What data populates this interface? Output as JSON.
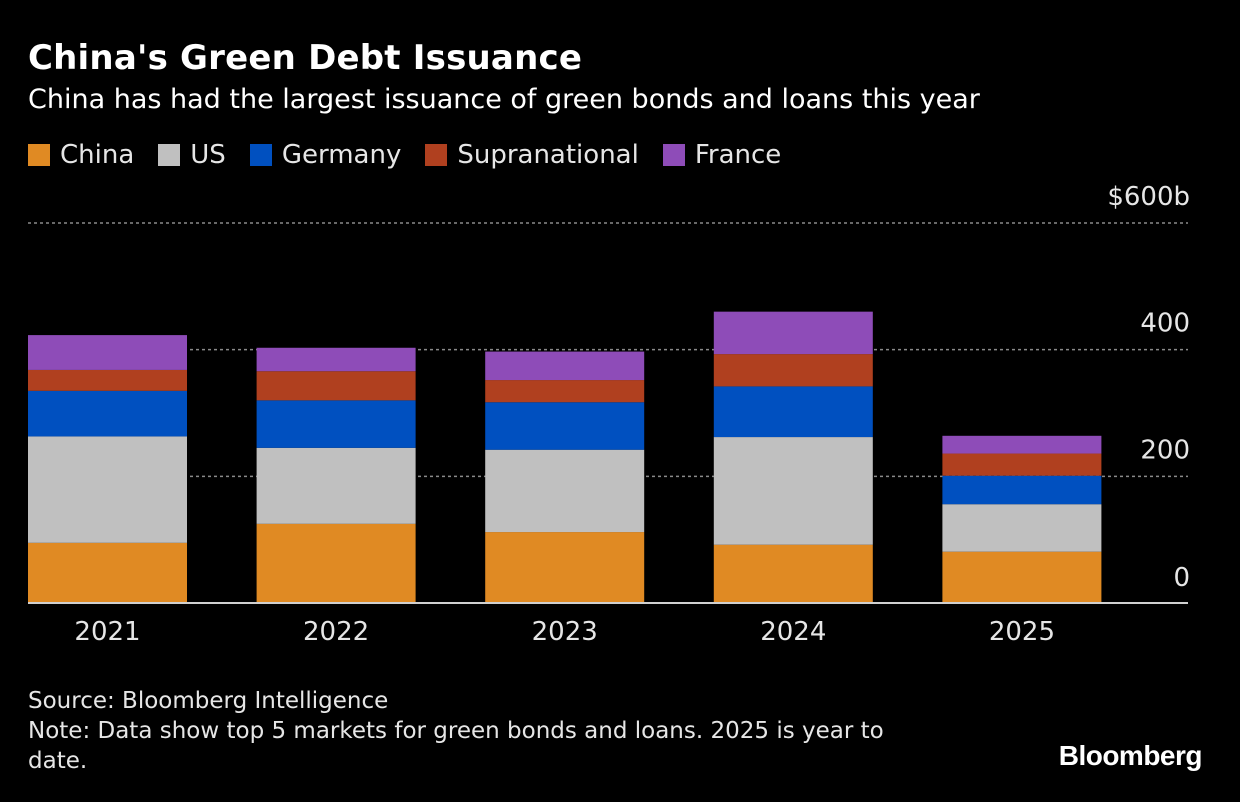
{
  "title": "China's Green Debt Issuance",
  "subtitle": "China has had the largest issuance of green bonds and loans this year",
  "source": "Source: Bloomberg Intelligence",
  "note": "Note: Data show top 5 markets for green bonds and loans. 2025 is year to date.",
  "logo": "Bloomberg",
  "chart_data": {
    "type": "bar",
    "stacked": true,
    "title": "China's Green Debt Issuance",
    "categories": [
      "2021",
      "2022",
      "2023",
      "2024",
      "2025"
    ],
    "series": [
      {
        "name": "China",
        "color": "#E08A23",
        "values": [
          95,
          125,
          112,
          92,
          81
        ]
      },
      {
        "name": "US",
        "color": "#C0C0C0",
        "values": [
          168,
          120,
          130,
          170,
          75
        ]
      },
      {
        "name": "Germany",
        "color": "#0050C0",
        "values": [
          72,
          75,
          75,
          80,
          45
        ]
      },
      {
        "name": "Supranational",
        "color": "#B0401F",
        "values": [
          33,
          46,
          35,
          51,
          35
        ]
      },
      {
        "name": "France",
        "color": "#8E4CB8",
        "values": [
          55,
          37,
          45,
          67,
          28
        ]
      }
    ],
    "y_ticks": [
      {
        "value": 0,
        "label": "0"
      },
      {
        "value": 200,
        "label": "200"
      },
      {
        "value": 400,
        "label": "400"
      },
      {
        "value": 600,
        "label": "$600b"
      }
    ],
    "ylim": [
      0,
      600
    ],
    "xlabel": "",
    "ylabel": "",
    "grid": true,
    "legend_position": "top-left"
  }
}
